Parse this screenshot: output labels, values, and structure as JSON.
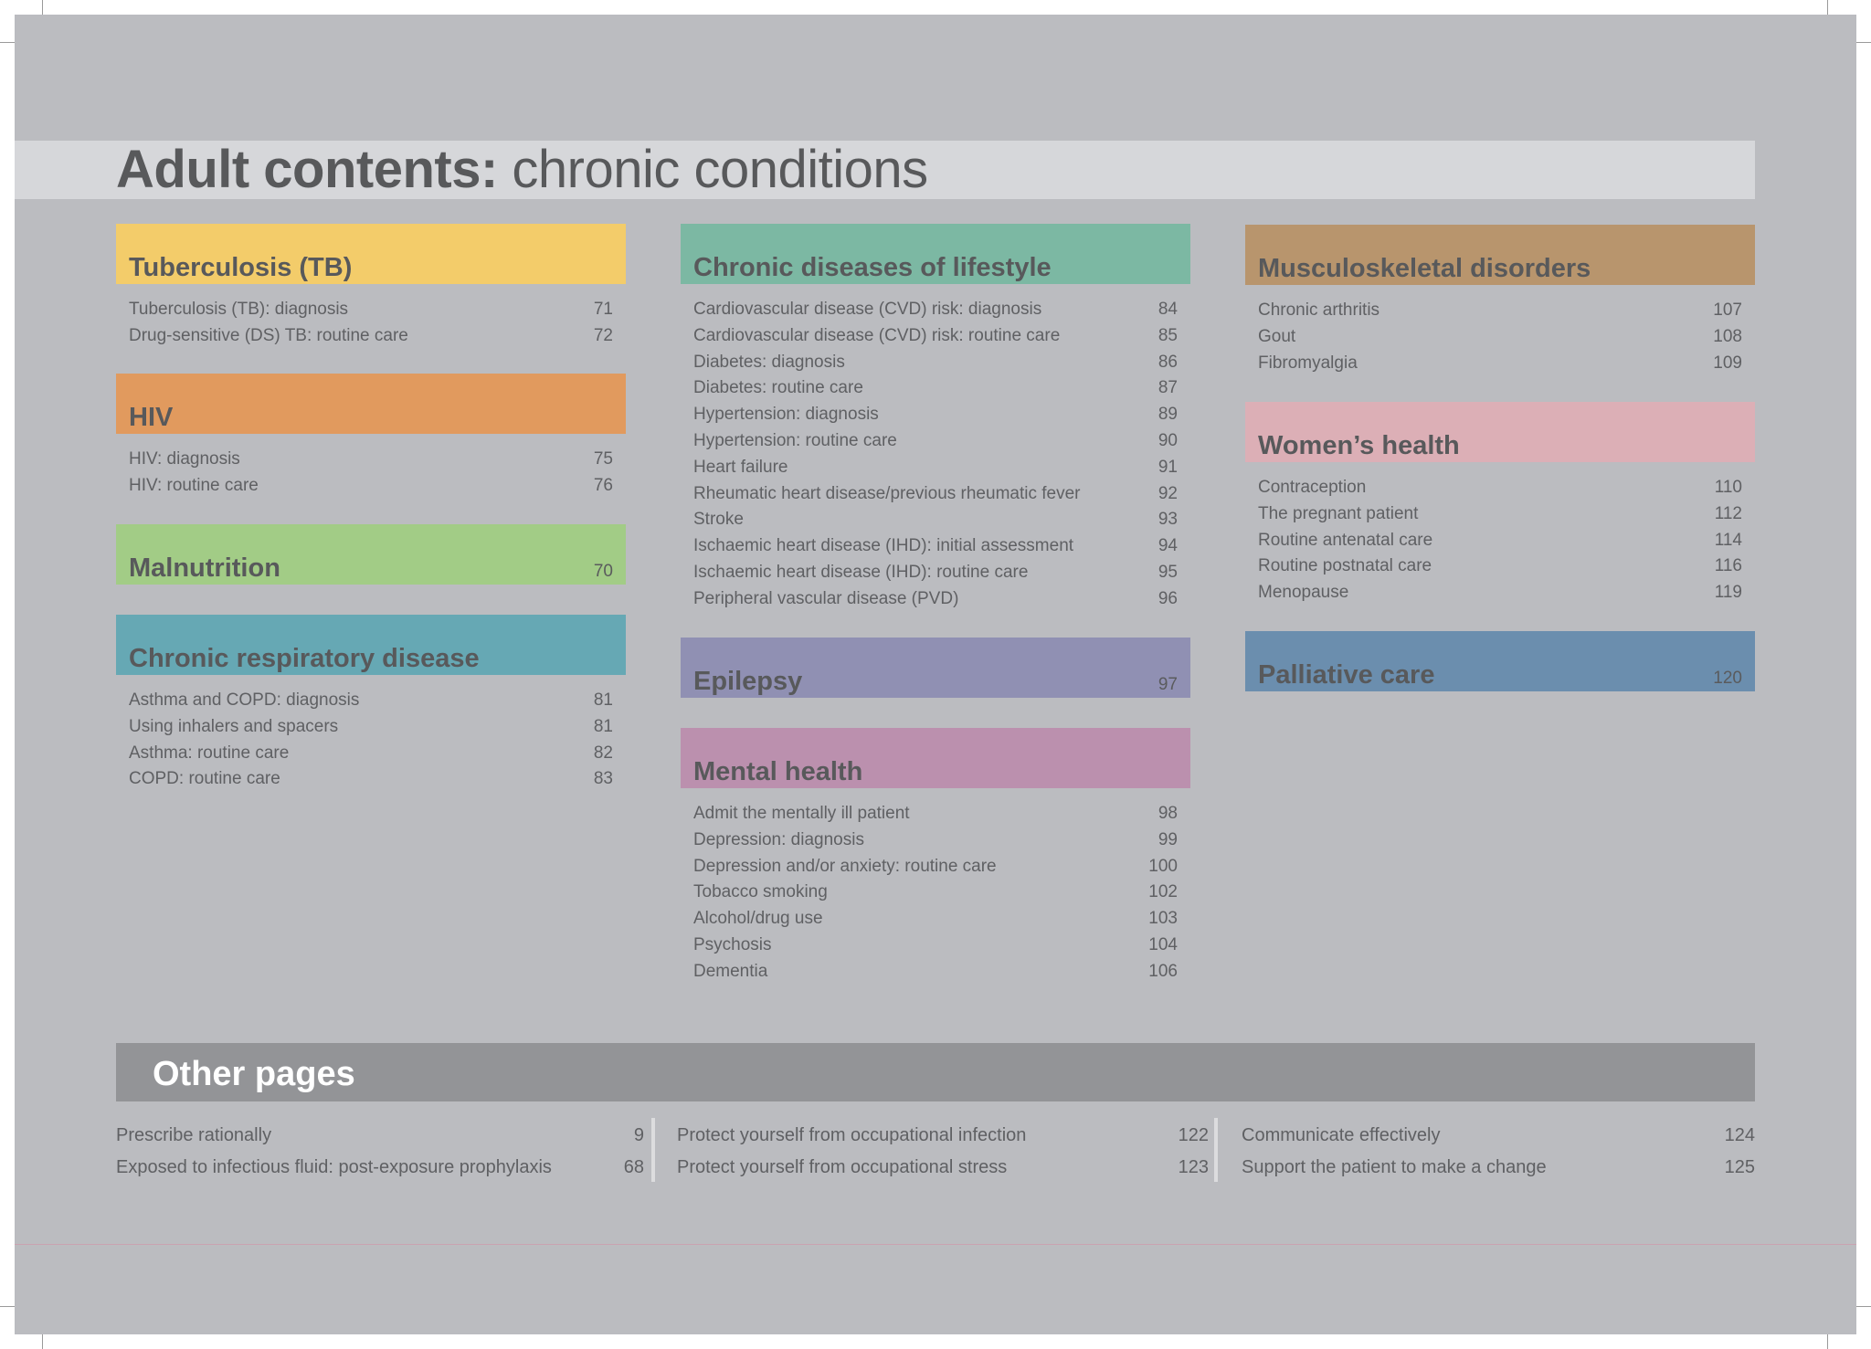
{
  "page_title": {
    "bold": "Adult contents:",
    "light": "chronic conditions"
  },
  "colors": {
    "tb": "#f3cc6a",
    "hiv": "#e19a5e",
    "malnutrition": "#a2cc86",
    "respiratory": "#66a8b4",
    "lifestyle": "#7cb8a3",
    "epilepsy": "#9090b3",
    "mental_health": "#bb90ae",
    "musculoskeletal": "#b8956d",
    "womens_health": "#dcafb6",
    "palliative": "#6b8eae"
  },
  "sections": {
    "tb": {
      "title": "Tuberculosis (TB)",
      "items": [
        {
          "label": "Tuberculosis (TB): diagnosis",
          "page": "71"
        },
        {
          "label": "Drug-sensitive (DS) TB: routine care",
          "page": "72"
        }
      ]
    },
    "hiv": {
      "title": "HIV",
      "items": [
        {
          "label": "HIV: diagnosis",
          "page": "75"
        },
        {
          "label": "HIV: routine care",
          "page": "76"
        }
      ]
    },
    "malnutrition": {
      "title": "Malnutrition",
      "page": "70"
    },
    "respiratory": {
      "title": "Chronic respiratory disease",
      "items": [
        {
          "label": "Asthma and COPD: diagnosis",
          "page": "81"
        },
        {
          "label": "Using inhalers and spacers",
          "page": "81"
        },
        {
          "label": "Asthma: routine care",
          "page": "82"
        },
        {
          "label": "COPD: routine care",
          "page": "83"
        }
      ]
    },
    "lifestyle": {
      "title": "Chronic diseases of lifestyle",
      "items": [
        {
          "label": "Cardiovascular disease (CVD) risk: diagnosis",
          "page": "84"
        },
        {
          "label": "Cardiovascular disease (CVD) risk: routine care",
          "page": "85"
        },
        {
          "label": "Diabetes: diagnosis",
          "page": "86"
        },
        {
          "label": "Diabetes: routine care",
          "page": "87"
        },
        {
          "label": "Hypertension: diagnosis",
          "page": "89"
        },
        {
          "label": "Hypertension: routine care",
          "page": "90"
        },
        {
          "label": "Heart failure",
          "page": "91"
        },
        {
          "label": "Rheumatic heart disease/previous rheumatic fever",
          "page": "92"
        },
        {
          "label": "Stroke",
          "page": "93"
        },
        {
          "label": "Ischaemic heart disease (IHD): initial assessment",
          "page": "94"
        },
        {
          "label": "Ischaemic heart disease (IHD): routine care",
          "page": "95"
        },
        {
          "label": "Peripheral vascular disease (PVD)",
          "page": "96"
        }
      ]
    },
    "epilepsy": {
      "title": "Epilepsy",
      "page": "97"
    },
    "mental_health": {
      "title": "Mental health",
      "items": [
        {
          "label": "Admit the mentally ill patient",
          "page": "98"
        },
        {
          "label": "Depression: diagnosis",
          "page": "99"
        },
        {
          "label": "Depression and/or anxiety: routine care",
          "page": "100"
        },
        {
          "label": "Tobacco smoking",
          "page": "102"
        },
        {
          "label": "Alcohol/drug use",
          "page": "103"
        },
        {
          "label": "Psychosis",
          "page": "104"
        },
        {
          "label": "Dementia",
          "page": "106"
        }
      ]
    },
    "musculoskeletal": {
      "title": "Musculoskeletal disorders",
      "items": [
        {
          "label": "Chronic arthritis",
          "page": "107"
        },
        {
          "label": "Gout",
          "page": "108"
        },
        {
          "label": "Fibromyalgia",
          "page": "109"
        }
      ]
    },
    "womens_health": {
      "title": "Women’s health",
      "items": [
        {
          "label": "Contraception",
          "page": "110"
        },
        {
          "label": "The pregnant patient",
          "page": "112"
        },
        {
          "label": "Routine antenatal care",
          "page": "114"
        },
        {
          "label": "Routine postnatal care",
          "page": "116"
        },
        {
          "label": "Menopause",
          "page": "119"
        }
      ]
    },
    "palliative": {
      "title": "Palliative care",
      "page": "120"
    }
  },
  "other_pages": {
    "title": "Other pages",
    "columns": [
      [
        {
          "label": "Prescribe rationally",
          "page": "9"
        },
        {
          "label": "Exposed to infectious fluid: post-exposure prophylaxis",
          "page": "68"
        }
      ],
      [
        {
          "label": "Protect yourself from occupational infection",
          "page": "122"
        },
        {
          "label": "Protect yourself from occupational stress",
          "page": "123"
        }
      ],
      [
        {
          "label": "Communicate effectively",
          "page": "124"
        },
        {
          "label": "Support the patient to make a change",
          "page": "125"
        }
      ]
    ]
  }
}
